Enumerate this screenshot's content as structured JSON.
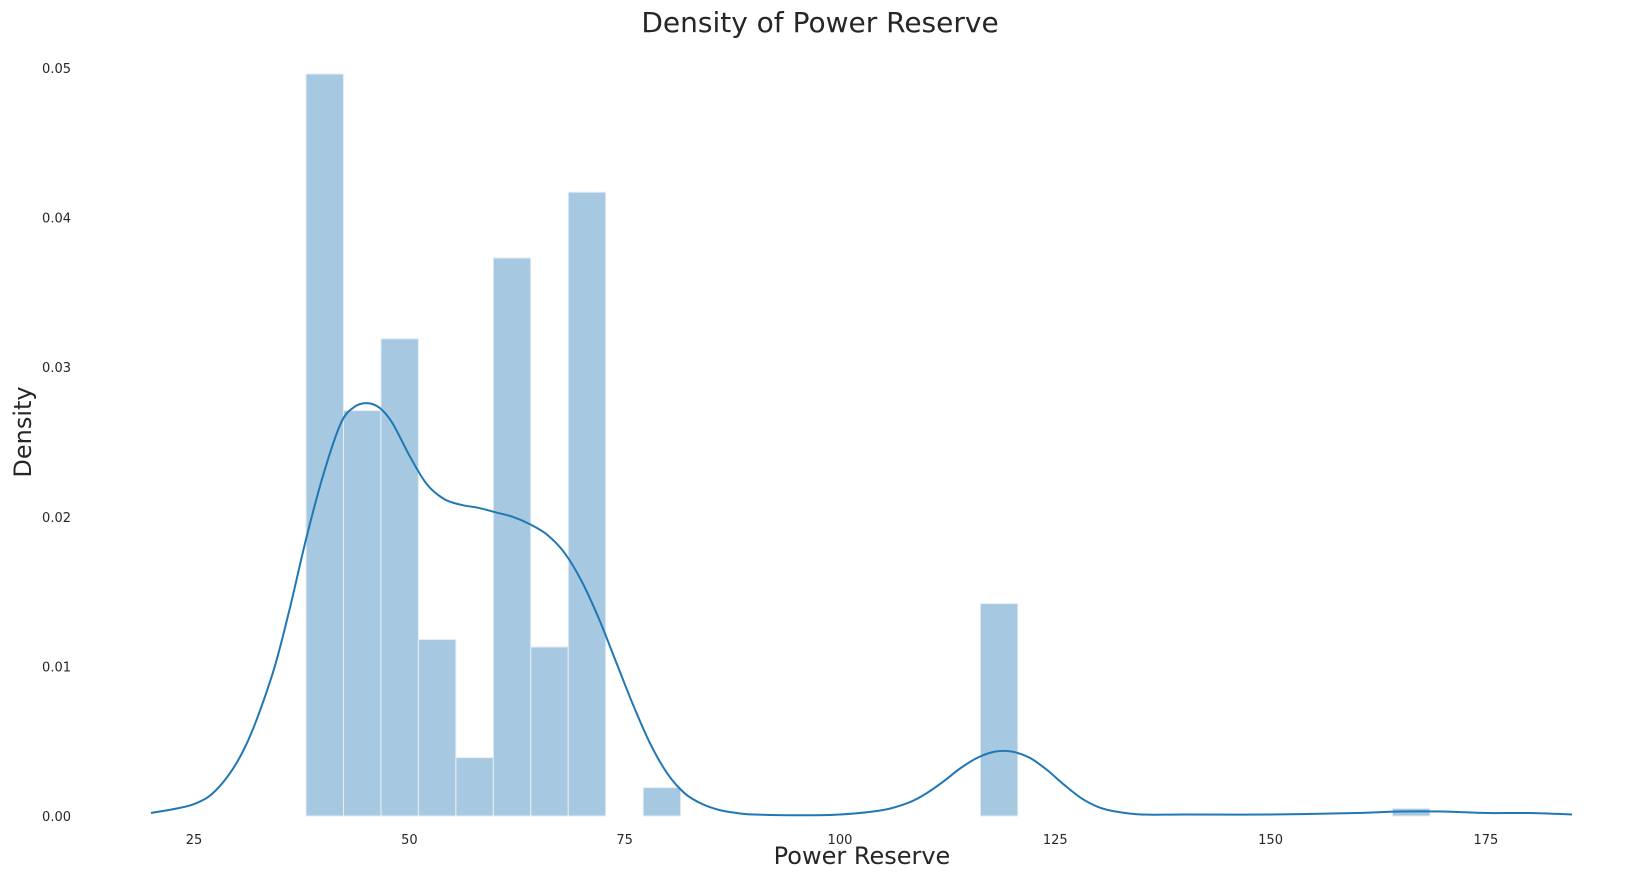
{
  "chart_data": {
    "type": "bar",
    "title": "Density of Power Reserve",
    "xlabel": "Power Reserve",
    "ylabel": "Density",
    "xlim": [
      20,
      185
    ],
    "ylim": [
      0,
      0.05
    ],
    "x_ticks": [
      25,
      50,
      75,
      100,
      125,
      150,
      175
    ],
    "y_ticks": [
      "0.00",
      "0.01",
      "0.02",
      "0.03",
      "0.04",
      "0.05"
    ],
    "grid": false,
    "histogram": {
      "bin_edges": [
        38,
        42.35,
        46.7,
        51.05,
        55.4,
        59.75,
        64.1,
        68.45,
        72.8,
        77.15,
        81.5,
        85.85,
        90.2,
        94.55,
        98.9,
        103.25,
        107.6,
        111.95,
        116.3,
        120.65,
        125,
        129.35,
        133.7,
        138.05,
        142.4,
        146.75,
        151.1,
        155.45,
        159.8,
        164.15,
        168.5
      ],
      "densities": [
        0.0496,
        0.0271,
        0.0319,
        0.0118,
        0.0039,
        0.0373,
        0.0113,
        0.0417,
        0,
        0.0019,
        0,
        0,
        0,
        0,
        0,
        0,
        0,
        0,
        0.0142,
        0,
        0,
        0,
        0,
        0,
        0,
        0,
        0,
        0,
        0,
        0.0005
      ]
    },
    "kde": {
      "x": [
        20,
        25,
        28,
        31,
        34,
        36,
        38,
        40,
        42,
        43.5,
        45,
        46.5,
        48,
        50,
        52,
        54,
        56,
        58,
        60,
        62,
        64,
        66,
        68,
        70,
        72,
        74,
        76,
        78,
        80,
        82,
        84,
        86,
        88,
        90,
        95,
        100,
        105,
        108,
        110,
        112,
        114,
        116,
        118,
        120,
        122,
        124,
        126,
        128,
        130,
        132,
        135,
        140,
        150,
        160,
        165,
        170,
        175,
        180,
        185
      ],
      "y": [
        0.0002,
        0.0008,
        0.002,
        0.0047,
        0.0093,
        0.0136,
        0.0185,
        0.0228,
        0.0262,
        0.0273,
        0.0276,
        0.0273,
        0.0263,
        0.0241,
        0.0222,
        0.0212,
        0.0208,
        0.0206,
        0.0203,
        0.02,
        0.0195,
        0.0188,
        0.0176,
        0.0157,
        0.0132,
        0.0103,
        0.0074,
        0.0048,
        0.0028,
        0.0015,
        0.0008,
        0.0004,
        0.0002,
        0.0001,
        5e-05,
        0.0001,
        0.0004,
        0.0009,
        0.0015,
        0.0023,
        0.0032,
        0.0039,
        0.0043,
        0.0043,
        0.0039,
        0.0031,
        0.0021,
        0.0012,
        0.0006,
        0.0003,
        0.0001,
        0.0001,
        0.0001,
        0.0002,
        0.0003,
        0.0003,
        0.0002,
        0.0002,
        0.0001
      ]
    },
    "colors": {
      "bars": "#a6c9e1",
      "kde_line": "#1f77b4"
    }
  }
}
